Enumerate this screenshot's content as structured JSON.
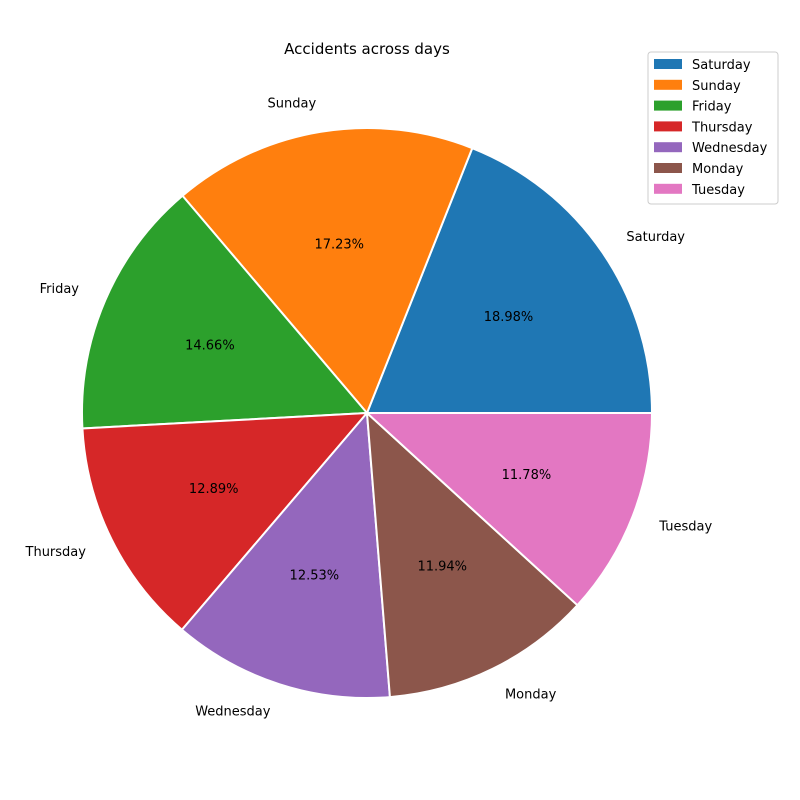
{
  "chart_data": {
    "type": "pie",
    "title": "Accidents across days",
    "slices": [
      {
        "label": "Saturday",
        "value": 18.98,
        "pct_label": "18.98%",
        "color": "#1f77b4"
      },
      {
        "label": "Sunday",
        "value": 17.23,
        "pct_label": "17.23%",
        "color": "#ff7f0e"
      },
      {
        "label": "Friday",
        "value": 14.66,
        "pct_label": "14.66%",
        "color": "#2ca02c"
      },
      {
        "label": "Thursday",
        "value": 12.89,
        "pct_label": "12.89%",
        "color": "#d62728"
      },
      {
        "label": "Wednesday",
        "value": 12.53,
        "pct_label": "12.53%",
        "color": "#9467bd"
      },
      {
        "label": "Monday",
        "value": 11.94,
        "pct_label": "11.94%",
        "color": "#8c564b"
      },
      {
        "label": "Tuesday",
        "value": 11.78,
        "pct_label": "11.78%",
        "color": "#e377c2"
      }
    ],
    "start_angle_deg": 0,
    "direction": "counterclockwise",
    "legend": {
      "position": "top-right"
    }
  }
}
